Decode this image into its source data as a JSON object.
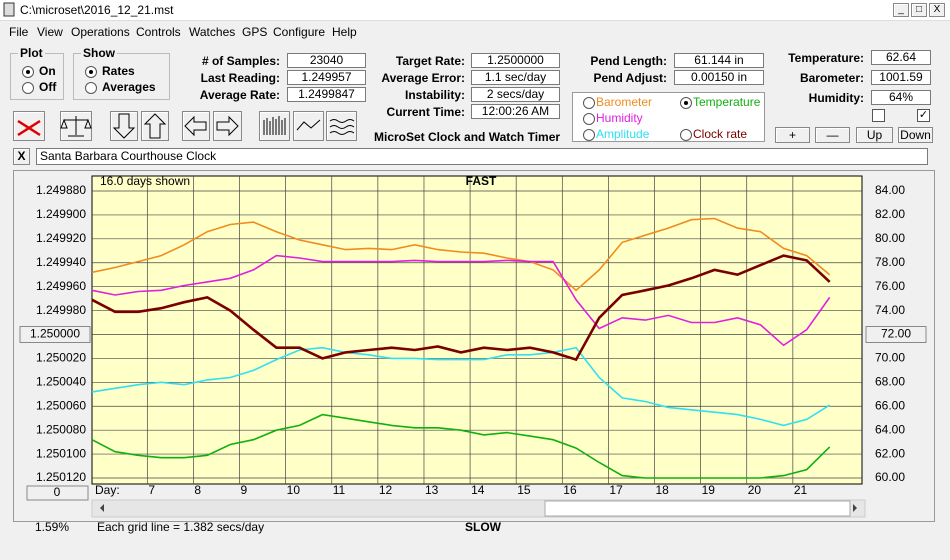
{
  "window": {
    "title": "C:\\microset\\2016_12_21.mst",
    "controls": [
      "_",
      "□",
      "X"
    ]
  },
  "menu": [
    "File",
    "View",
    "Operations",
    "Controls",
    "Watches",
    "GPS",
    "Configure",
    "Help"
  ],
  "plot_group": {
    "title": "Plot",
    "options": [
      "On",
      "Off"
    ],
    "selected": 0
  },
  "show_group": {
    "title": "Show",
    "options": [
      "Rates",
      "Averages"
    ],
    "selected": 0
  },
  "fields": [
    {
      "label": "# of Samples:",
      "value": "23040"
    },
    {
      "label": "Last Reading:",
      "value": "1.249957"
    },
    {
      "label": "Average Rate:",
      "value": "1.2499847"
    },
    {
      "label": "Target Rate:",
      "value": "1.2500000"
    },
    {
      "label": "Average Error:",
      "value": "1.1 sec/day"
    },
    {
      "label": "Instability:",
      "value": "2 secs/day"
    },
    {
      "label": "Current Time:",
      "value": "12:00:26 AM"
    },
    {
      "label": "Pend Length:",
      "value": "61.144 in"
    },
    {
      "label": "Pend Adjust:",
      "value": "0.00150 in"
    },
    {
      "label": "Temperature:",
      "value": "62.64"
    },
    {
      "label": "Barometer:",
      "value": "1001.59"
    },
    {
      "label": "Humidity:",
      "value": "64%"
    }
  ],
  "app_label": "MicroSet Clock and Watch Timer",
  "checkboxes": [
    false,
    true
  ],
  "buttons": [
    "+",
    "—",
    "Up",
    "Down"
  ],
  "close_button": "X",
  "watch_name": "Santa Barbara Courthouse Clock",
  "chart_data": {
    "type": "line",
    "title": "FAST",
    "bottom_label": "SLOW",
    "days_shown": "16.0 days shown",
    "day_label": "Day:",
    "scroll_value": "0",
    "percent": "1.59%",
    "grid_note": "Each grid line = 1.382 secs/day",
    "right_axis_series": 1,
    "grid": true,
    "x": [
      5.8,
      6.3,
      6.8,
      7.3,
      7.8,
      8.3,
      8.8,
      9.3,
      9.8,
      10.3,
      10.8,
      11.3,
      11.8,
      12.3,
      12.8,
      13.3,
      13.8,
      14.3,
      14.8,
      15.3,
      15.8,
      16.3,
      16.8,
      17.3,
      17.8,
      18.3,
      18.8,
      19.3,
      19.8,
      20.3,
      20.8,
      21.3,
      21.8
    ],
    "xlim": [
      5.8,
      22.5
    ],
    "xticks": [
      7,
      8,
      9,
      10,
      11,
      12,
      13,
      14,
      15,
      16,
      17,
      18,
      19,
      20,
      21
    ],
    "ylim": [
      1.25012,
      1.24988
    ],
    "yticks": [
      {
        "value": 1.24988,
        "label": "1.249880"
      },
      {
        "value": 1.2499,
        "label": "1.249900"
      },
      {
        "value": 1.24992,
        "label": "1.249920"
      },
      {
        "value": 1.24994,
        "label": "1.249940"
      },
      {
        "value": 1.24996,
        "label": "1.249960"
      },
      {
        "value": 1.24998,
        "label": "1.249980"
      },
      {
        "value": 1.25,
        "label": "1.250000"
      },
      {
        "value": 1.25002,
        "label": "1.250020"
      },
      {
        "value": 1.25004,
        "label": "1.250040"
      },
      {
        "value": 1.25006,
        "label": "1.250060"
      },
      {
        "value": 1.25008,
        "label": "1.250080"
      },
      {
        "value": 1.2501,
        "label": "1.250100"
      },
      {
        "value": 1.25012,
        "label": "1.250120"
      }
    ],
    "y2lim": [
      60,
      84
    ],
    "y2ticks": [
      {
        "value": 84,
        "label": "84.00"
      },
      {
        "value": 82,
        "label": "82.00"
      },
      {
        "value": 80,
        "label": "80.00"
      },
      {
        "value": 78,
        "label": "78.00"
      },
      {
        "value": 76,
        "label": "76.00"
      },
      {
        "value": 74,
        "label": "74.00"
      },
      {
        "value": 72,
        "label": "72.00"
      },
      {
        "value": 70,
        "label": "70.00"
      },
      {
        "value": 68,
        "label": "68.00"
      },
      {
        "value": 66,
        "label": "66.00"
      },
      {
        "value": 64,
        "label": "64.00"
      },
      {
        "value": 62,
        "label": "62.00"
      },
      {
        "value": 60,
        "label": "60.00"
      }
    ],
    "series": [
      {
        "name": "Barometer",
        "color": "#f08c1e",
        "axis": "y2",
        "values": [
          77.2,
          77.6,
          78.1,
          78.6,
          79.5,
          80.6,
          81.2,
          81.4,
          80.6,
          79.9,
          79.5,
          79.1,
          79.2,
          79.1,
          79.5,
          79.1,
          78.9,
          78.8,
          78.4,
          78.1,
          77.4,
          75.7,
          77.4,
          79.7,
          80.3,
          80.9,
          81.6,
          81.7,
          80.9,
          80.6,
          79.2,
          78.6,
          77.0
        ]
      },
      {
        "name": "Temperature",
        "color": "#10b010",
        "axis": "y2",
        "values": [
          63.2,
          62.2,
          61.9,
          61.7,
          61.7,
          61.9,
          62.8,
          63.2,
          64.0,
          64.4,
          65.3,
          65.0,
          64.7,
          64.4,
          64.2,
          64.2,
          64.0,
          63.6,
          63.8,
          63.5,
          63.2,
          62.5,
          61.3,
          60.2,
          60.0,
          60.0,
          60.0,
          60.0,
          60.0,
          60.0,
          60.2,
          60.7,
          62.6
        ]
      },
      {
        "name": "Humidity",
        "color": "#e020e0",
        "axis": "y2",
        "values": [
          75.7,
          75.3,
          75.6,
          75.7,
          76.1,
          76.4,
          76.7,
          77.4,
          78.6,
          78.4,
          78.1,
          78.1,
          78.1,
          78.1,
          78.2,
          78.1,
          78.1,
          78.1,
          78.2,
          78.1,
          78.1,
          74.9,
          72.5,
          73.4,
          73.2,
          73.6,
          73.0,
          73.0,
          73.4,
          72.8,
          71.1,
          72.4,
          75.1
        ]
      },
      {
        "name": "Amplitude",
        "color": "#30e0f0",
        "axis": "y2",
        "values": [
          67.2,
          67.5,
          67.8,
          68.0,
          67.8,
          68.2,
          68.4,
          69.0,
          69.9,
          70.7,
          70.9,
          70.5,
          70.3,
          70.0,
          70.0,
          69.9,
          69.9,
          69.9,
          70.3,
          70.3,
          70.5,
          70.9,
          68.4,
          66.7,
          66.4,
          65.9,
          65.7,
          65.5,
          65.3,
          64.9,
          64.4,
          64.9,
          66.1
        ]
      },
      {
        "name": "Clock rate",
        "color": "#7a0000",
        "axis": "y",
        "values": [
          1.249971,
          1.249981,
          1.249981,
          1.249978,
          1.249973,
          1.249969,
          1.24998,
          1.249996,
          1.250011,
          1.250011,
          1.25002,
          1.250015,
          1.250013,
          1.250011,
          1.250013,
          1.25001,
          1.250015,
          1.250011,
          1.250013,
          1.250011,
          1.250015,
          1.250021,
          1.249986,
          1.249967,
          1.249963,
          1.249959,
          1.249953,
          1.249946,
          1.24995,
          1.249942,
          1.249934,
          1.249938,
          1.249956
        ]
      }
    ]
  }
}
